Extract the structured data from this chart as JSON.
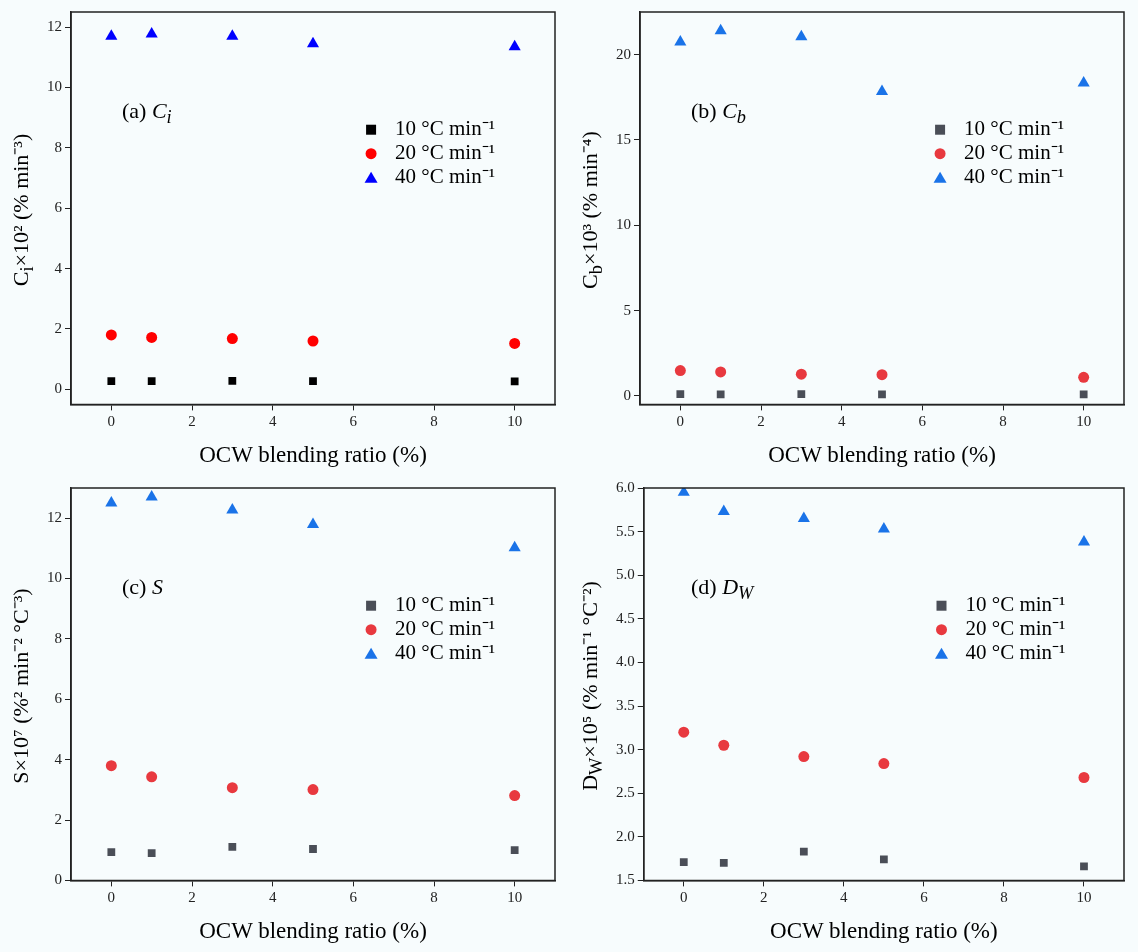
{
  "chart_data": [
    {
      "type": "scatter",
      "ylabel": "C$_{i}$×10² (% min⁻³)",
      "xlabel": "OCW blending ratio (%)",
      "annotations": [
        "(a) C$_{i}$"
      ],
      "x": [
        0,
        1,
        3,
        5,
        10
      ],
      "xlim": [
        -1,
        11
      ],
      "xticks": [
        0,
        2,
        4,
        6,
        8,
        10
      ],
      "ylim": [
        -0.5,
        12.5
      ],
      "yticks": [
        0,
        2,
        4,
        6,
        8,
        10,
        12
      ],
      "grid": false,
      "legend": "right",
      "series": [
        {
          "name": "10 °C min⁻¹",
          "color": "#000000",
          "marker": "square",
          "values": [
            0.27,
            0.27,
            0.28,
            0.27,
            0.26
          ]
        },
        {
          "name": "20 °C min⁻¹",
          "color": "#ff0000",
          "marker": "circle",
          "values": [
            1.8,
            1.72,
            1.68,
            1.6,
            1.52
          ]
        },
        {
          "name": "40 °C min⁻¹",
          "color": "#0000ff",
          "marker": "triangle",
          "values": [
            11.7,
            11.77,
            11.7,
            11.45,
            11.35
          ]
        }
      ]
    },
    {
      "type": "scatter",
      "ylabel": "C$_{b}$×10³ (% min⁻⁴)",
      "xlabel": "OCW blending ratio (%)",
      "annotations": [
        "(b) C$_{b}$"
      ],
      "x": [
        0,
        1,
        3,
        5,
        10
      ],
      "xlim": [
        -1,
        11
      ],
      "xticks": [
        0,
        2,
        4,
        6,
        8,
        10
      ],
      "ylim": [
        -0.5,
        22.5
      ],
      "yticks": [
        0,
        5,
        10,
        15,
        20
      ],
      "grid": false,
      "legend": "right",
      "series": [
        {
          "name": "10 °C min⁻¹",
          "color": "#4a4e57",
          "marker": "square",
          "values": [
            0.1,
            0.09,
            0.1,
            0.09,
            0.09
          ]
        },
        {
          "name": "20 °C min⁻¹",
          "color": "#e8393f",
          "marker": "circle",
          "values": [
            1.48,
            1.4,
            1.27,
            1.24,
            1.09
          ]
        },
        {
          "name": "40 °C min⁻¹",
          "color": "#1a73e8",
          "marker": "triangle",
          "values": [
            20.74,
            21.4,
            21.05,
            17.84,
            18.34
          ]
        }
      ]
    },
    {
      "type": "scatter",
      "ylabel": "S×10⁷ (%² min⁻² °C⁻³)",
      "xlabel": "OCW blending ratio (%)",
      "annotations": [
        "(c) S"
      ],
      "x": [
        0,
        1,
        3,
        5,
        10
      ],
      "xlim": [
        -1,
        11
      ],
      "xticks": [
        0,
        2,
        4,
        6,
        8,
        10
      ],
      "ylim": [
        0,
        13
      ],
      "yticks": [
        0,
        2,
        4,
        6,
        8,
        10,
        12
      ],
      "grid": false,
      "legend": "right",
      "series": [
        {
          "name": "10 °C min⁻¹",
          "color": "#4a4e57",
          "marker": "square",
          "values": [
            0.94,
            0.9,
            1.11,
            1.04,
            1.0
          ]
        },
        {
          "name": "20 °C min⁻¹",
          "color": "#e8393f",
          "marker": "circle",
          "values": [
            3.8,
            3.43,
            3.07,
            3.01,
            2.81
          ]
        },
        {
          "name": "40 °C min⁻¹",
          "color": "#1a73e8",
          "marker": "triangle",
          "values": [
            12.5,
            12.7,
            12.27,
            11.79,
            11.02
          ]
        }
      ]
    },
    {
      "type": "scatter",
      "ylabel": "D$_{W}$×10⁵ (% min⁻¹ °C⁻²)",
      "xlabel": "OCW blending ratio (%)",
      "annotations": [
        "(d) D$_{W}$"
      ],
      "x": [
        0,
        1,
        3,
        5,
        10
      ],
      "xlim": [
        -1,
        11
      ],
      "xticks": [
        0,
        2,
        4,
        6,
        8,
        10
      ],
      "ylim": [
        1.5,
        6.0
      ],
      "yticks": [
        {
          "value": 1.5,
          "label": "1.5"
        },
        {
          "value": 2,
          "label": "2.0"
        },
        {
          "value": 2.5,
          "label": "2.5"
        },
        {
          "value": 3,
          "label": "3.0"
        },
        {
          "value": 3.5,
          "label": "3.5"
        },
        {
          "value": 4,
          "label": "4.0"
        },
        {
          "value": 4.5,
          "label": "4.5"
        },
        {
          "value": 5,
          "label": "5.0"
        },
        {
          "value": 5.5,
          "label": "5.5"
        },
        {
          "value": 6,
          "label": "6.0"
        }
      ],
      "grid": false,
      "legend": "right",
      "series": [
        {
          "name": "10 °C min⁻¹",
          "color": "#4a4e57",
          "marker": "square",
          "values": [
            1.71,
            1.7,
            1.83,
            1.74,
            1.66
          ]
        },
        {
          "name": "20 °C min⁻¹",
          "color": "#e8393f",
          "marker": "circle",
          "values": [
            3.2,
            3.05,
            2.92,
            2.84,
            2.68
          ]
        },
        {
          "name": "40 °C min⁻¹",
          "color": "#1a73e8",
          "marker": "triangle",
          "values": [
            5.95,
            5.73,
            5.65,
            5.53,
            5.38
          ]
        }
      ]
    }
  ]
}
